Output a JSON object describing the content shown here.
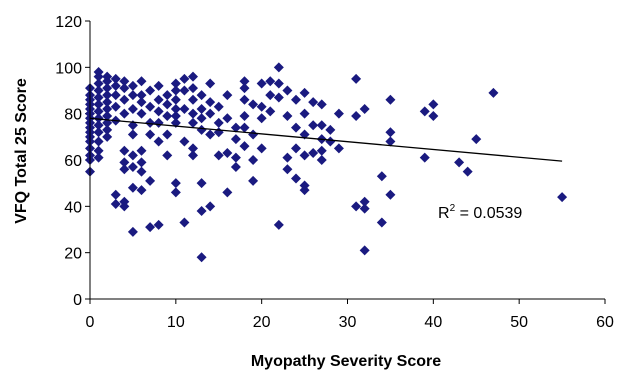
{
  "chart_data": {
    "type": "scatter",
    "title": "",
    "xlabel": "Myopathy Severity Score",
    "ylabel": "VFQ Total 25 Score",
    "xlim": [
      0,
      60
    ],
    "ylim": [
      0,
      120
    ],
    "x_ticks": [
      "0",
      "10",
      "20",
      "30",
      "40",
      "50",
      "60"
    ],
    "y_ticks": [
      "0",
      "20",
      "40",
      "60",
      "80",
      "100",
      "120"
    ],
    "grid": false,
    "legend": "none",
    "marker_color": "#1a1a80",
    "marker": "diamond",
    "trendline": {
      "type": "linear",
      "x": [
        0,
        55
      ],
      "y": [
        78,
        59.5
      ],
      "color": "#000000"
    },
    "annotation": {
      "base": "R",
      "superscript": "2",
      "rest": " = 0.0539"
    },
    "points": [
      [
        0,
        91
      ],
      [
        0,
        88
      ],
      [
        0,
        86
      ],
      [
        0,
        84
      ],
      [
        0,
        82
      ],
      [
        0,
        80
      ],
      [
        0,
        78
      ],
      [
        0,
        76
      ],
      [
        0,
        74
      ],
      [
        0,
        72
      ],
      [
        0,
        70
      ],
      [
        0,
        68
      ],
      [
        0,
        65
      ],
      [
        0,
        62
      ],
      [
        0,
        60
      ],
      [
        0,
        55
      ],
      [
        1,
        98
      ],
      [
        1,
        96
      ],
      [
        1,
        93
      ],
      [
        1,
        90
      ],
      [
        1,
        87
      ],
      [
        1,
        84
      ],
      [
        1,
        81
      ],
      [
        1,
        78
      ],
      [
        1,
        75
      ],
      [
        1,
        72
      ],
      [
        1,
        68
      ],
      [
        1,
        64
      ],
      [
        1,
        61
      ],
      [
        2,
        96
      ],
      [
        2,
        94
      ],
      [
        2,
        91
      ],
      [
        2,
        88
      ],
      [
        2,
        85
      ],
      [
        2,
        82
      ],
      [
        2,
        79
      ],
      [
        2,
        76
      ],
      [
        2,
        73
      ],
      [
        2,
        70
      ],
      [
        3,
        95
      ],
      [
        3,
        92
      ],
      [
        3,
        88
      ],
      [
        3,
        83
      ],
      [
        3,
        77
      ],
      [
        3,
        45
      ],
      [
        3,
        41
      ],
      [
        4,
        94
      ],
      [
        4,
        91
      ],
      [
        4,
        86
      ],
      [
        4,
        80
      ],
      [
        4,
        64
      ],
      [
        4,
        59
      ],
      [
        4,
        56
      ],
      [
        4,
        42
      ],
      [
        4,
        40
      ],
      [
        5,
        92
      ],
      [
        5,
        88
      ],
      [
        5,
        82
      ],
      [
        5,
        75
      ],
      [
        5,
        71
      ],
      [
        5,
        62
      ],
      [
        5,
        57
      ],
      [
        5,
        48
      ],
      [
        5,
        29
      ],
      [
        6,
        94
      ],
      [
        6,
        88
      ],
      [
        6,
        85
      ],
      [
        6,
        80
      ],
      [
        6,
        64
      ],
      [
        6,
        59
      ],
      [
        6,
        55
      ],
      [
        6,
        47
      ],
      [
        7,
        90
      ],
      [
        7,
        83
      ],
      [
        7,
        76
      ],
      [
        7,
        71
      ],
      [
        7,
        51
      ],
      [
        7,
        31
      ],
      [
        8,
        92
      ],
      [
        8,
        86
      ],
      [
        8,
        81
      ],
      [
        8,
        76
      ],
      [
        8,
        68
      ],
      [
        8,
        32
      ],
      [
        9,
        88
      ],
      [
        9,
        84
      ],
      [
        9,
        79
      ],
      [
        9,
        71
      ],
      [
        9,
        62
      ],
      [
        10,
        93
      ],
      [
        10,
        90
      ],
      [
        10,
        86
      ],
      [
        10,
        82
      ],
      [
        10,
        79
      ],
      [
        10,
        76
      ],
      [
        10,
        50
      ],
      [
        10,
        46
      ],
      [
        11,
        95
      ],
      [
        11,
        90
      ],
      [
        11,
        82
      ],
      [
        11,
        68
      ],
      [
        11,
        33
      ],
      [
        12,
        96
      ],
      [
        12,
        91
      ],
      [
        12,
        86
      ],
      [
        12,
        80
      ],
      [
        12,
        76
      ],
      [
        12,
        65
      ],
      [
        12,
        62
      ],
      [
        13,
        88
      ],
      [
        13,
        82
      ],
      [
        13,
        78
      ],
      [
        13,
        73
      ],
      [
        13,
        50
      ],
      [
        13,
        38
      ],
      [
        13,
        18
      ],
      [
        14,
        93
      ],
      [
        14,
        85
      ],
      [
        14,
        80
      ],
      [
        14,
        71
      ],
      [
        14,
        40
      ],
      [
        15,
        83
      ],
      [
        15,
        76
      ],
      [
        15,
        72
      ],
      [
        15,
        62
      ],
      [
        16,
        88
      ],
      [
        16,
        78
      ],
      [
        16,
        63
      ],
      [
        16,
        46
      ],
      [
        17,
        74
      ],
      [
        17,
        69
      ],
      [
        17,
        61
      ],
      [
        17,
        57
      ],
      [
        18,
        94
      ],
      [
        18,
        91
      ],
      [
        18,
        86
      ],
      [
        18,
        79
      ],
      [
        18,
        74
      ],
      [
        18,
        66
      ],
      [
        19,
        84
      ],
      [
        19,
        71
      ],
      [
        19,
        60
      ],
      [
        19,
        51
      ],
      [
        20,
        93
      ],
      [
        20,
        83
      ],
      [
        20,
        78
      ],
      [
        20,
        65
      ],
      [
        21,
        94
      ],
      [
        21,
        88
      ],
      [
        21,
        81
      ],
      [
        22,
        100
      ],
      [
        22,
        93
      ],
      [
        22,
        87
      ],
      [
        22,
        32
      ],
      [
        23,
        90
      ],
      [
        23,
        79
      ],
      [
        23,
        61
      ],
      [
        23,
        56
      ],
      [
        24,
        86
      ],
      [
        24,
        74
      ],
      [
        24,
        65
      ],
      [
        24,
        52
      ],
      [
        25,
        89
      ],
      [
        25,
        80
      ],
      [
        25,
        71
      ],
      [
        25,
        62
      ],
      [
        25,
        49
      ],
      [
        25,
        47
      ],
      [
        26,
        85
      ],
      [
        26,
        75
      ],
      [
        26,
        63
      ],
      [
        27,
        84
      ],
      [
        27,
        75
      ],
      [
        27,
        69
      ],
      [
        27,
        64
      ],
      [
        27,
        60
      ],
      [
        28,
        73
      ],
      [
        28,
        68
      ],
      [
        29,
        80
      ],
      [
        29,
        65
      ],
      [
        31,
        95
      ],
      [
        31,
        79
      ],
      [
        31,
        40
      ],
      [
        32,
        82
      ],
      [
        32,
        42
      ],
      [
        32,
        39
      ],
      [
        32,
        21
      ],
      [
        34,
        53
      ],
      [
        34,
        33
      ],
      [
        35,
        86
      ],
      [
        35,
        72
      ],
      [
        35,
        68
      ],
      [
        35,
        45
      ],
      [
        39,
        81
      ],
      [
        39,
        61
      ],
      [
        40,
        84
      ],
      [
        40,
        79
      ],
      [
        43,
        59
      ],
      [
        44,
        55
      ],
      [
        45,
        69
      ],
      [
        47,
        89
      ],
      [
        55,
        44
      ]
    ]
  }
}
